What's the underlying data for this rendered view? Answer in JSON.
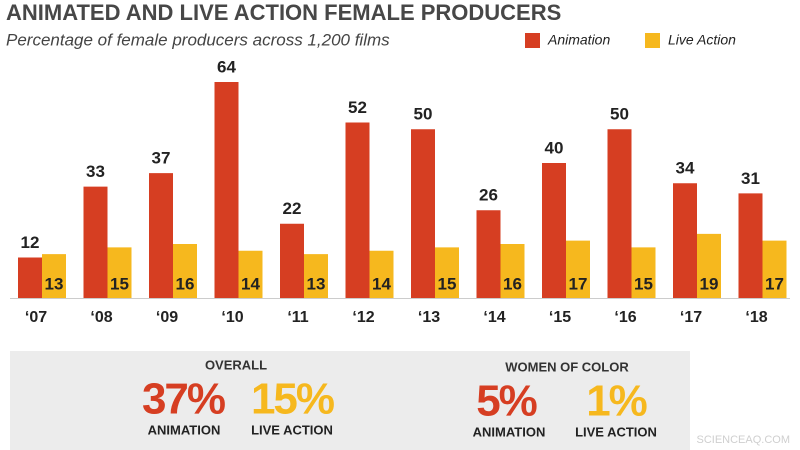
{
  "chart_data": {
    "type": "bar",
    "title": "ANIMATED AND LIVE ACTION FEMALE PRODUCERS",
    "subtitle": "Percentage of female producers across 1,200 films",
    "categories": [
      "‘07",
      "‘08",
      "‘09",
      "‘10",
      "‘11",
      "‘12",
      "‘13",
      "‘14",
      "‘15",
      "‘16",
      "‘17",
      "‘18"
    ],
    "series": [
      {
        "name": "Animation",
        "color": "#d63e22",
        "values": [
          12,
          33,
          37,
          64,
          22,
          52,
          50,
          26,
          40,
          50,
          34,
          31
        ]
      },
      {
        "name": "Live Action",
        "color": "#f6b81e",
        "values": [
          13,
          15,
          16,
          14,
          13,
          14,
          15,
          16,
          17,
          15,
          19,
          17
        ]
      }
    ]
  },
  "summary": [
    {
      "title": "OVERALL",
      "stats": [
        {
          "value": "37%",
          "label": "ANIMATION"
        },
        {
          "value": "15%",
          "label": "LIVE ACTION"
        }
      ]
    },
    {
      "title": "WOMEN OF COLOR",
      "stats": [
        {
          "value": "5%",
          "label": "ANIMATION"
        },
        {
          "value": "1%",
          "label": "LIVE ACTION"
        }
      ]
    }
  ],
  "watermark": "SCIENCEAQ.COM"
}
